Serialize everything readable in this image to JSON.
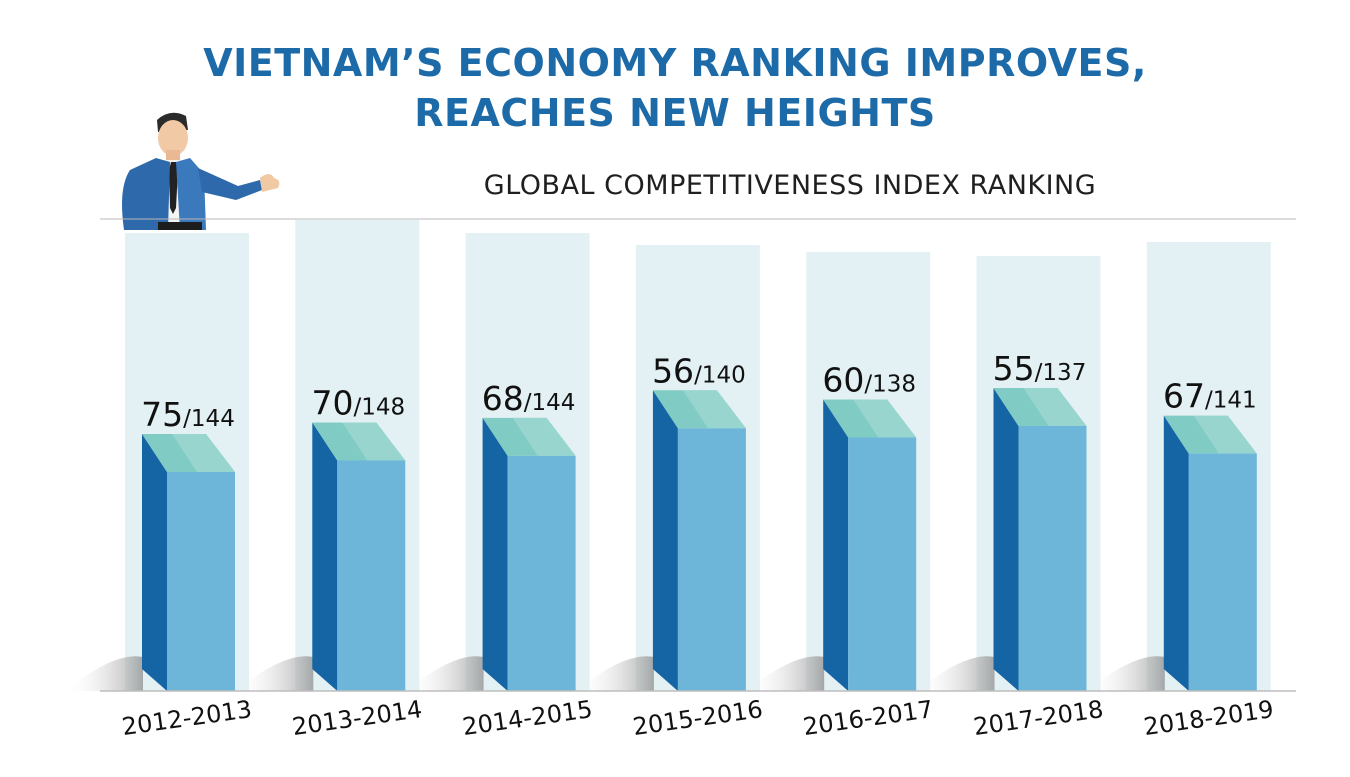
{
  "title_line1": "VIETNAM’S ECONOMY RANKING IMPROVES,",
  "title_line2": "REACHES NEW HEIGHTS",
  "colors": {
    "title": "#1d6aa8",
    "bar_front": "#6db6d9",
    "bar_side": "#1565a5",
    "bar_top": "#80cbc4",
    "background_column": "#e3f1f4"
  },
  "chart_data": {
    "type": "bar",
    "title": "GLOBAL COMPETITIVENESS INDEX RANKING",
    "categories": [
      "2012-2013",
      "2013-2014",
      "2014-2015",
      "2015-2016",
      "2016-2017",
      "2017-2018",
      "2018-2019"
    ],
    "series": [
      {
        "values": [
          75,
          70,
          68,
          56,
          60,
          55,
          67
        ]
      }
    ],
    "totals": [
      144,
      148,
      144,
      140,
      138,
      137,
      141
    ],
    "labels": [
      "75/144",
      "70/148",
      "68/144",
      "56/140",
      "60/138",
      "55/137",
      "67/141"
    ],
    "grid": false
  }
}
